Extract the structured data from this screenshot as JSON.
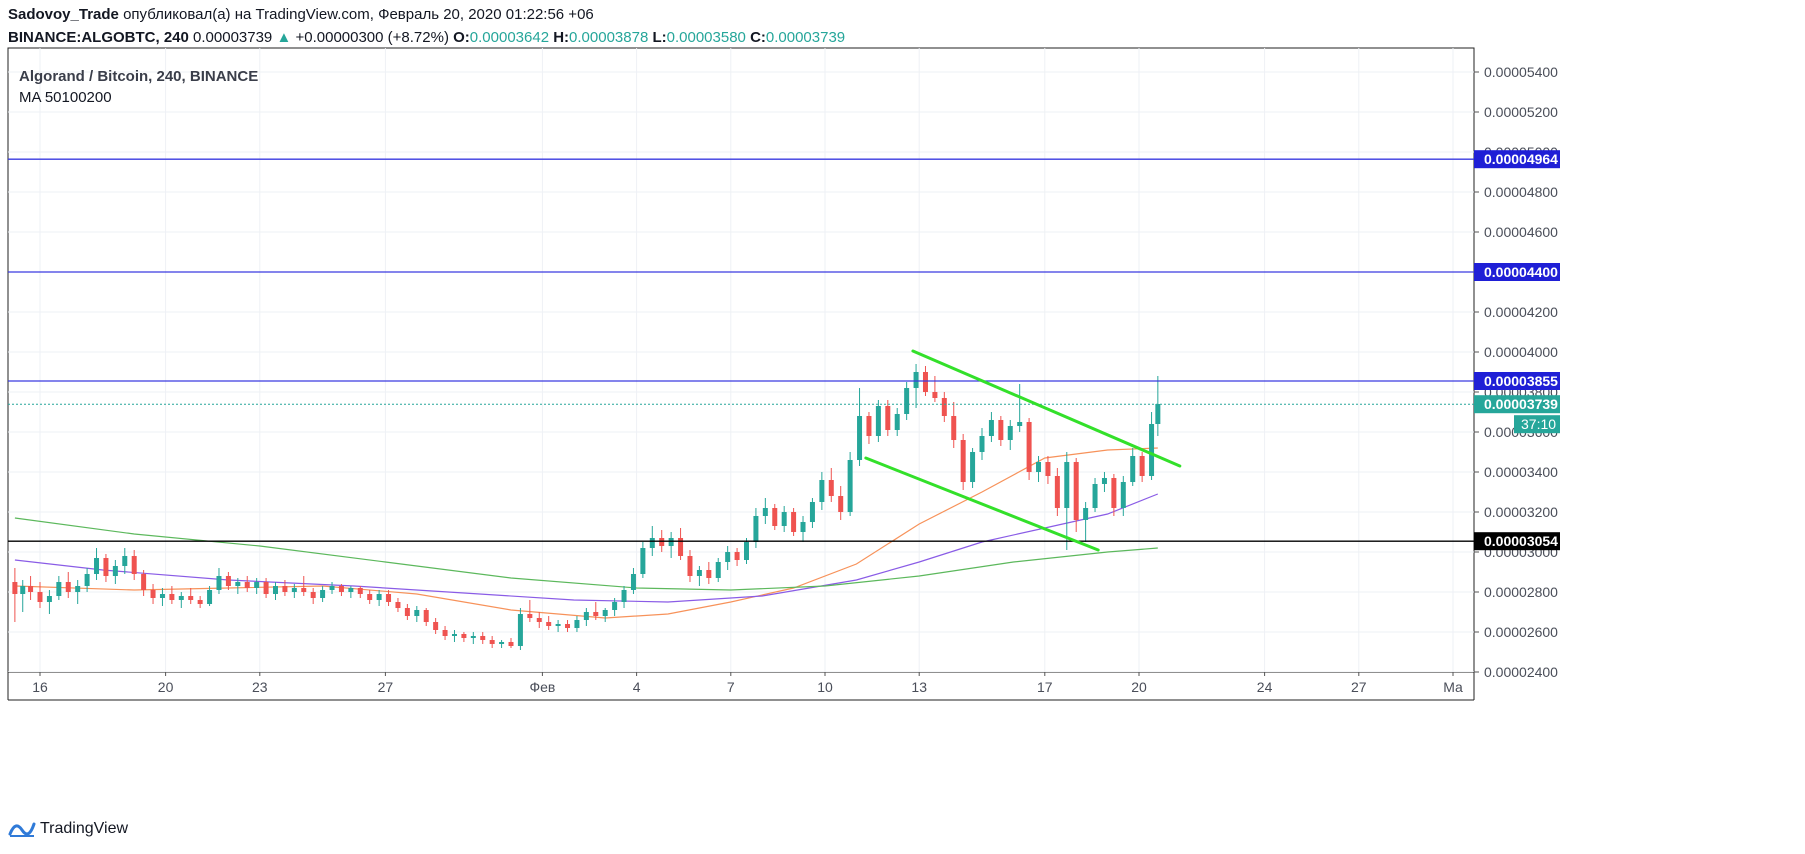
{
  "header": {
    "author": "Sadovoy_Trade",
    "published_text": "опубликовал(а) на TradingView.com, Февраль 20, 2020 01:22:56 +06",
    "symbol": "BINANCE:ALGOBTC, 240",
    "last": "0.00003739",
    "change": "+0.00000300 (+8.72%)",
    "o_label": "O:",
    "o": "0.00003642",
    "h_label": "H:",
    "h": "0.00003878",
    "l_label": "L:",
    "l": "0.00003580",
    "c_label": "C:",
    "c": "0.00003739"
  },
  "legend": {
    "title": "Algorand / Bitcoin, 240, BINANCE",
    "indicator": "MA 50100200"
  },
  "footer": {
    "brand": "TradingView"
  },
  "colors": {
    "up": "#26a69a",
    "down": "#ef5350",
    "grid": "#eef1f5",
    "hline": "#3a3ae0",
    "support": "#000000",
    "channel": "#33e02a",
    "ma50": "#f7925a",
    "ma100": "#8a5ce6",
    "ma200": "#5cb85c"
  },
  "chart_data": {
    "type": "candlestick",
    "title": "Algorand / Bitcoin, 240, BINANCE",
    "ylim": [
      2.4e-05,
      5.52e-05
    ],
    "x_ticks": [
      {
        "label": "16",
        "day": 0
      },
      {
        "label": "20",
        "day": 4
      },
      {
        "label": "23",
        "day": 7
      },
      {
        "label": "27",
        "day": 11
      },
      {
        "label": "Фев",
        "day": 16
      },
      {
        "label": "4",
        "day": 19
      },
      {
        "label": "7",
        "day": 22
      },
      {
        "label": "10",
        "day": 25
      },
      {
        "label": "13",
        "day": 28
      },
      {
        "label": "17",
        "day": 32
      },
      {
        "label": "20",
        "day": 35
      },
      {
        "label": "24",
        "day": 39
      },
      {
        "label": "27",
        "day": 42
      },
      {
        "label": "Ма",
        "day": 45
      }
    ],
    "y_ticks": [
      "0.00002400",
      "0.00002600",
      "0.00002800",
      "0.00003000",
      "0.00003200",
      "0.00003400",
      "0.00003600",
      "0.00003800",
      "0.00004000",
      "0.00004200",
      "0.00004400",
      "0.00004600",
      "0.00004800",
      "0.00005000",
      "0.00005200",
      "0.00005400"
    ],
    "horizontal_lines": [
      {
        "label": "0.00004964",
        "value": 4.964e-05,
        "kind": "resistance"
      },
      {
        "label": "0.00004400",
        "value": 4.4e-05,
        "kind": "resistance"
      },
      {
        "label": "0.00003855",
        "value": 3.855e-05,
        "kind": "resistance"
      },
      {
        "label": "0.00003054",
        "value": 3.054e-05,
        "kind": "support"
      }
    ],
    "last_price": {
      "label": "0.00003739",
      "value": 3.739e-05,
      "countdown": "37:10"
    },
    "trend_lines": [
      {
        "name": "channel-top",
        "from": {
          "day": 27.8,
          "value": 4.005e-05
        },
        "to": {
          "day": 36.3,
          "value": 3.43e-05
        }
      },
      {
        "name": "channel-bottom",
        "from": {
          "day": 26.3,
          "value": 3.47e-05
        },
        "to": {
          "day": 33.7,
          "value": 3.01e-05
        }
      }
    ],
    "candles": [
      [
        -0.8,
        2.85e-05,
        2.92e-05,
        2.65e-05,
        2.79e-05
      ],
      [
        -0.55,
        2.79e-05,
        2.86e-05,
        2.7e-05,
        2.83e-05
      ],
      [
        -0.3,
        2.83e-05,
        2.88e-05,
        2.76e-05,
        2.8e-05
      ],
      [
        0.0,
        2.8e-05,
        2.85e-05,
        2.72e-05,
        2.75e-05
      ],
      [
        0.3,
        2.75e-05,
        2.81e-05,
        2.69e-05,
        2.78e-05
      ],
      [
        0.6,
        2.78e-05,
        2.88e-05,
        2.76e-05,
        2.85e-05
      ],
      [
        0.9,
        2.85e-05,
        2.9e-05,
        2.77e-05,
        2.8e-05
      ],
      [
        1.2,
        2.8e-05,
        2.86e-05,
        2.74e-05,
        2.83e-05
      ],
      [
        1.5,
        2.83e-05,
        2.92e-05,
        2.8e-05,
        2.89e-05
      ],
      [
        1.8,
        2.89e-05,
        3.02e-05,
        2.86e-05,
        2.97e-05
      ],
      [
        2.1,
        2.97e-05,
        2.99e-05,
        2.85e-05,
        2.88e-05
      ],
      [
        2.4,
        2.88e-05,
        2.96e-05,
        2.84e-05,
        2.93e-05
      ],
      [
        2.7,
        2.93e-05,
        3.02e-05,
        2.89e-05,
        2.98e-05
      ],
      [
        3.0,
        2.98e-05,
        3.01e-05,
        2.86e-05,
        2.89e-05
      ],
      [
        3.3,
        2.89e-05,
        2.91e-05,
        2.78e-05,
        2.81e-05
      ],
      [
        3.6,
        2.81e-05,
        2.84e-05,
        2.74e-05,
        2.77e-05
      ],
      [
        3.9,
        2.77e-05,
        2.82e-05,
        2.73e-05,
        2.79e-05
      ],
      [
        4.2,
        2.79e-05,
        2.83e-05,
        2.74e-05,
        2.76e-05
      ],
      [
        4.5,
        2.76e-05,
        2.8e-05,
        2.72e-05,
        2.78e-05
      ],
      [
        4.8,
        2.78e-05,
        2.82e-05,
        2.74e-05,
        2.76e-05
      ],
      [
        5.1,
        2.76e-05,
        2.78e-05,
        2.72e-05,
        2.74e-05
      ],
      [
        5.4,
        2.74e-05,
        2.83e-05,
        2.73e-05,
        2.81e-05
      ],
      [
        5.7,
        2.81e-05,
        2.92e-05,
        2.79e-05,
        2.88e-05
      ],
      [
        6.0,
        2.88e-05,
        2.9e-05,
        2.81e-05,
        2.83e-05
      ],
      [
        6.3,
        2.83e-05,
        2.87e-05,
        2.79e-05,
        2.85e-05
      ],
      [
        6.6,
        2.85e-05,
        2.88e-05,
        2.8e-05,
        2.82e-05
      ],
      [
        6.9,
        2.82e-05,
        2.87e-05,
        2.79e-05,
        2.85e-05
      ],
      [
        7.2,
        2.85e-05,
        2.87e-05,
        2.77e-05,
        2.79e-05
      ],
      [
        7.5,
        2.79e-05,
        2.85e-05,
        2.76e-05,
        2.83e-05
      ],
      [
        7.8,
        2.83e-05,
        2.86e-05,
        2.78e-05,
        2.8e-05
      ],
      [
        8.1,
        2.8e-05,
        2.84e-05,
        2.77e-05,
        2.82e-05
      ],
      [
        8.4,
        2.82e-05,
        2.88e-05,
        2.78e-05,
        2.8e-05
      ],
      [
        8.7,
        2.8e-05,
        2.82e-05,
        2.74e-05,
        2.77e-05
      ],
      [
        9.0,
        2.77e-05,
        2.83e-05,
        2.75e-05,
        2.81e-05
      ],
      [
        9.3,
        2.81e-05,
        2.85e-05,
        2.79e-05,
        2.83e-05
      ],
      [
        9.6,
        2.83e-05,
        2.84e-05,
        2.78e-05,
        2.8e-05
      ],
      [
        9.9,
        2.8e-05,
        2.83e-05,
        2.77e-05,
        2.82e-05
      ],
      [
        10.2,
        2.82e-05,
        2.83e-05,
        2.77e-05,
        2.79e-05
      ],
      [
        10.5,
        2.79e-05,
        2.81e-05,
        2.74e-05,
        2.76e-05
      ],
      [
        10.8,
        2.76e-05,
        2.81e-05,
        2.73e-05,
        2.79e-05
      ],
      [
        11.1,
        2.79e-05,
        2.81e-05,
        2.73e-05,
        2.75e-05
      ],
      [
        11.4,
        2.75e-05,
        2.77e-05,
        2.7e-05,
        2.72e-05
      ],
      [
        11.7,
        2.72e-05,
        2.74e-05,
        2.66e-05,
        2.68e-05
      ],
      [
        12.0,
        2.68e-05,
        2.73e-05,
        2.65e-05,
        2.71e-05
      ],
      [
        12.3,
        2.71e-05,
        2.72e-05,
        2.63e-05,
        2.65e-05
      ],
      [
        12.6,
        2.65e-05,
        2.67e-05,
        2.59e-05,
        2.61e-05
      ],
      [
        12.9,
        2.61e-05,
        2.63e-05,
        2.56e-05,
        2.58e-05
      ],
      [
        13.2,
        2.58e-05,
        2.61e-05,
        2.55e-05,
        2.59e-05
      ],
      [
        13.5,
        2.59e-05,
        2.6e-05,
        2.55e-05,
        2.57e-05
      ],
      [
        13.8,
        2.57e-05,
        2.6e-05,
        2.54e-05,
        2.58e-05
      ],
      [
        14.1,
        2.58e-05,
        2.6e-05,
        2.54e-05,
        2.56e-05
      ],
      [
        14.4,
        2.56e-05,
        2.58e-05,
        2.52e-05,
        2.54e-05
      ],
      [
        14.7,
        2.54e-05,
        2.56e-05,
        2.52e-05,
        2.55e-05
      ],
      [
        15.0,
        2.55e-05,
        2.57e-05,
        2.52e-05,
        2.53e-05
      ],
      [
        15.3,
        2.53e-05,
        2.72e-05,
        2.51e-05,
        2.69e-05
      ],
      [
        15.6,
        2.69e-05,
        2.76e-05,
        2.65e-05,
        2.67e-05
      ],
      [
        15.9,
        2.67e-05,
        2.7e-05,
        2.62e-05,
        2.65e-05
      ],
      [
        16.2,
        2.65e-05,
        2.68e-05,
        2.61e-05,
        2.63e-05
      ],
      [
        16.5,
        2.63e-05,
        2.66e-05,
        2.6e-05,
        2.64e-05
      ],
      [
        16.8,
        2.64e-05,
        2.66e-05,
        2.6e-05,
        2.62e-05
      ],
      [
        17.1,
        2.62e-05,
        2.68e-05,
        2.6e-05,
        2.66e-05
      ],
      [
        17.4,
        2.66e-05,
        2.72e-05,
        2.63e-05,
        2.7e-05
      ],
      [
        17.7,
        2.7e-05,
        2.75e-05,
        2.66e-05,
        2.68e-05
      ],
      [
        18.0,
        2.68e-05,
        2.72e-05,
        2.65e-05,
        2.71e-05
      ],
      [
        18.3,
        2.71e-05,
        2.77e-05,
        2.68e-05,
        2.75e-05
      ],
      [
        18.6,
        2.75e-05,
        2.83e-05,
        2.72e-05,
        2.81e-05
      ],
      [
        18.9,
        2.81e-05,
        2.92e-05,
        2.79e-05,
        2.89e-05
      ],
      [
        19.2,
        2.89e-05,
        3.05e-05,
        2.87e-05,
        3.02e-05
      ],
      [
        19.5,
        3.02e-05,
        3.13e-05,
        2.98e-05,
        3.07e-05
      ],
      [
        19.8,
        3.07e-05,
        3.11e-05,
        3e-05,
        3.03e-05
      ],
      [
        20.1,
        3.03e-05,
        3.1e-05,
        2.97e-05,
        3.07e-05
      ],
      [
        20.4,
        3.07e-05,
        3.12e-05,
        2.96e-05,
        2.98e-05
      ],
      [
        20.7,
        2.98e-05,
        3.01e-05,
        2.85e-05,
        2.88e-05
      ],
      [
        21.0,
        2.88e-05,
        2.93e-05,
        2.83e-05,
        2.91e-05
      ],
      [
        21.3,
        2.91e-05,
        2.95e-05,
        2.84e-05,
        2.87e-05
      ],
      [
        21.6,
        2.87e-05,
        2.97e-05,
        2.85e-05,
        2.95e-05
      ],
      [
        21.9,
        2.95e-05,
        3.03e-05,
        2.91e-05,
        3e-05
      ],
      [
        22.2,
        3e-05,
        3.02e-05,
        2.93e-05,
        2.96e-05
      ],
      [
        22.5,
        2.96e-05,
        3.07e-05,
        2.94e-05,
        3.05e-05
      ],
      [
        22.8,
        3.05e-05,
        3.22e-05,
        3.02e-05,
        3.18e-05
      ],
      [
        23.1,
        3.18e-05,
        3.27e-05,
        3.14e-05,
        3.22e-05
      ],
      [
        23.4,
        3.22e-05,
        3.24e-05,
        3.11e-05,
        3.13e-05
      ],
      [
        23.7,
        3.13e-05,
        3.23e-05,
        3.1e-05,
        3.2e-05
      ],
      [
        24.0,
        3.2e-05,
        3.22e-05,
        3.08e-05,
        3.1e-05
      ],
      [
        24.3,
        3.1e-05,
        3.18e-05,
        3.05e-05,
        3.15e-05
      ],
      [
        24.6,
        3.15e-05,
        3.27e-05,
        3.12e-05,
        3.25e-05
      ],
      [
        24.9,
        3.25e-05,
        3.4e-05,
        3.21e-05,
        3.36e-05
      ],
      [
        25.2,
        3.36e-05,
        3.42e-05,
        3.25e-05,
        3.28e-05
      ],
      [
        25.5,
        3.28e-05,
        3.33e-05,
        3.16e-05,
        3.2e-05
      ],
      [
        25.8,
        3.2e-05,
        3.5e-05,
        3.18e-05,
        3.46e-05
      ],
      [
        26.1,
        3.46e-05,
        3.82e-05,
        3.43e-05,
        3.68e-05
      ],
      [
        26.4,
        3.68e-05,
        3.7e-05,
        3.54e-05,
        3.58e-05
      ],
      [
        26.7,
        3.58e-05,
        3.76e-05,
        3.55e-05,
        3.73e-05
      ],
      [
        27.0,
        3.73e-05,
        3.76e-05,
        3.58e-05,
        3.61e-05
      ],
      [
        27.3,
        3.61e-05,
        3.72e-05,
        3.58e-05,
        3.69e-05
      ],
      [
        27.6,
        3.69e-05,
        3.85e-05,
        3.66e-05,
        3.82e-05
      ],
      [
        27.9,
        3.82e-05,
        3.94e-05,
        3.72e-05,
        3.9e-05
      ],
      [
        28.2,
        3.9e-05,
        3.93e-05,
        3.78e-05,
        3.8e-05
      ],
      [
        28.5,
        3.8e-05,
        3.88e-05,
        3.75e-05,
        3.77e-05
      ],
      [
        28.8,
        3.77e-05,
        3.8e-05,
        3.65e-05,
        3.68e-05
      ],
      [
        29.1,
        3.68e-05,
        3.75e-05,
        3.52e-05,
        3.56e-05
      ],
      [
        29.4,
        3.56e-05,
        3.59e-05,
        3.31e-05,
        3.35e-05
      ],
      [
        29.7,
        3.35e-05,
        3.52e-05,
        3.32e-05,
        3.5e-05
      ],
      [
        30.0,
        3.5e-05,
        3.62e-05,
        3.46e-05,
        3.58e-05
      ],
      [
        30.3,
        3.58e-05,
        3.7e-05,
        3.55e-05,
        3.66e-05
      ],
      [
        30.6,
        3.66e-05,
        3.68e-05,
        3.53e-05,
        3.56e-05
      ],
      [
        30.9,
        3.56e-05,
        3.66e-05,
        3.51e-05,
        3.63e-05
      ],
      [
        31.2,
        3.63e-05,
        3.84e-05,
        3.6e-05,
        3.65e-05
      ],
      [
        31.5,
        3.65e-05,
        3.67e-05,
        3.36e-05,
        3.4e-05
      ],
      [
        31.8,
        3.4e-05,
        3.48e-05,
        3.35e-05,
        3.45e-05
      ],
      [
        32.1,
        3.45e-05,
        3.48e-05,
        3.34e-05,
        3.38e-05
      ],
      [
        32.4,
        3.38e-05,
        3.42e-05,
        3.18e-05,
        3.22e-05
      ],
      [
        32.7,
        3.22e-05,
        3.5e-05,
        3.01e-05,
        3.45e-05
      ],
      [
        33.0,
        3.45e-05,
        3.47e-05,
        3.1e-05,
        3.16e-05
      ],
      [
        33.3,
        3.16e-05,
        3.25e-05,
        3.05e-05,
        3.22e-05
      ],
      [
        33.6,
        3.22e-05,
        3.37e-05,
        3.2e-05,
        3.34e-05
      ],
      [
        33.9,
        3.34e-05,
        3.4e-05,
        3.3e-05,
        3.37e-05
      ],
      [
        34.2,
        3.37e-05,
        3.39e-05,
        3.18e-05,
        3.22e-05
      ],
      [
        34.5,
        3.22e-05,
        3.38e-05,
        3.18e-05,
        3.35e-05
      ],
      [
        34.8,
        3.35e-05,
        3.52e-05,
        3.33e-05,
        3.48e-05
      ],
      [
        35.1,
        3.48e-05,
        3.5e-05,
        3.35e-05,
        3.38e-05
      ],
      [
        35.4,
        3.38e-05,
        3.7e-05,
        3.36e-05,
        3.64e-05
      ],
      [
        35.6,
        3.64e-05,
        3.88e-05,
        3.58e-05,
        3.74e-05
      ]
    ],
    "ma_series": [
      {
        "name": "MA 50",
        "points": [
          [
            -0.8,
            2.83e-05
          ],
          [
            3,
            2.81e-05
          ],
          [
            6,
            2.82e-05
          ],
          [
            9,
            2.83e-05
          ],
          [
            12,
            2.79e-05
          ],
          [
            15,
            2.71e-05
          ],
          [
            18,
            2.67e-05
          ],
          [
            20,
            2.69e-05
          ],
          [
            22,
            2.75e-05
          ],
          [
            24,
            2.82e-05
          ],
          [
            26,
            2.94e-05
          ],
          [
            28,
            3.14e-05
          ],
          [
            30,
            3.3e-05
          ],
          [
            32,
            3.47e-05
          ],
          [
            34,
            3.51e-05
          ],
          [
            35.6,
            3.52e-05
          ]
        ]
      },
      {
        "name": "MA 100",
        "points": [
          [
            -0.8,
            2.96e-05
          ],
          [
            2,
            2.91e-05
          ],
          [
            6,
            2.86e-05
          ],
          [
            10,
            2.83e-05
          ],
          [
            14,
            2.79e-05
          ],
          [
            17,
            2.76e-05
          ],
          [
            20,
            2.75e-05
          ],
          [
            23,
            2.78e-05
          ],
          [
            26,
            2.86e-05
          ],
          [
            28,
            2.95e-05
          ],
          [
            30,
            3.05e-05
          ],
          [
            32,
            3.12e-05
          ],
          [
            34,
            3.19e-05
          ],
          [
            35.6,
            3.29e-05
          ]
        ]
      },
      {
        "name": "MA 200",
        "points": [
          [
            -0.8,
            3.17e-05
          ],
          [
            3,
            3.09e-05
          ],
          [
            7,
            3.03e-05
          ],
          [
            11,
            2.95e-05
          ],
          [
            15,
            2.87e-05
          ],
          [
            19,
            2.82e-05
          ],
          [
            22,
            2.81e-05
          ],
          [
            25,
            2.83e-05
          ],
          [
            28,
            2.88e-05
          ],
          [
            31,
            2.95e-05
          ],
          [
            34,
            3e-05
          ],
          [
            35.6,
            3.02e-05
          ]
        ]
      }
    ]
  }
}
